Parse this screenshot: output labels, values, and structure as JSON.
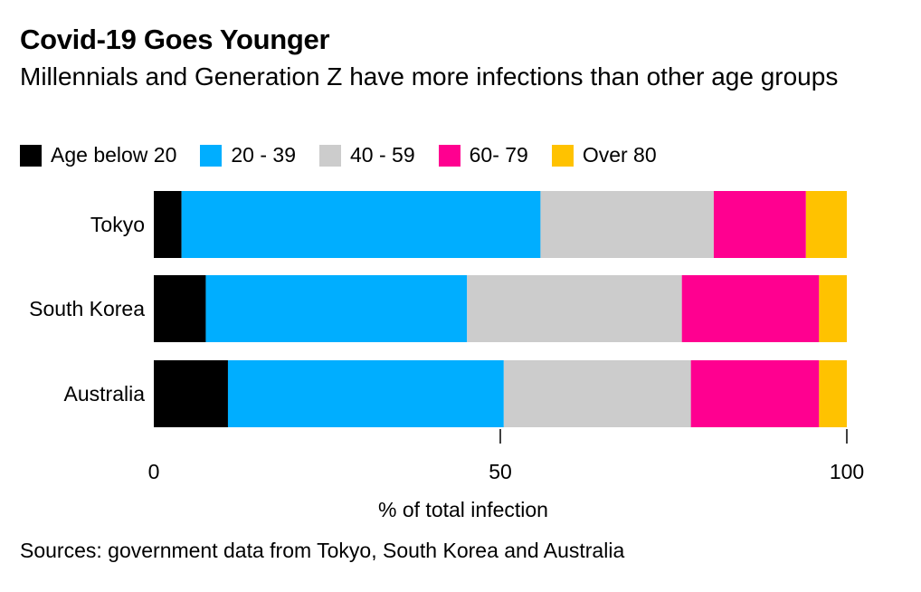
{
  "chart_data": {
    "type": "bar",
    "orientation": "horizontal",
    "stacked": true,
    "title": "Covid-19 Goes Younger",
    "subtitle": "Millennials and Generation Z have more infections than other age groups",
    "categories": [
      "Tokyo",
      "South Korea",
      "Australia"
    ],
    "series": [
      {
        "name": "Age below 20",
        "color": "#000000",
        "values": [
          4,
          7.5,
          10.7
        ]
      },
      {
        "name": "20 - 39",
        "color": "#00aeff",
        "values": [
          51.8,
          37.7,
          39.8
        ]
      },
      {
        "name": "40 - 59",
        "color": "#cccccc",
        "values": [
          25,
          31,
          27
        ]
      },
      {
        "name": "60- 79",
        "color": "#ff0090",
        "values": [
          13.3,
          19.8,
          18.5
        ]
      },
      {
        "name": "Over 80",
        "color": "#ffc200",
        "values": [
          5.9,
          4,
          4
        ]
      }
    ],
    "xlim": [
      0,
      100
    ],
    "xticks": [
      0,
      50,
      100
    ],
    "xlabel": "% of total infection",
    "ylabel": "",
    "legend_position": "top-left",
    "grid": false
  },
  "footer": {
    "source": "Sources: government data from Tokyo, South Korea and Australia"
  }
}
